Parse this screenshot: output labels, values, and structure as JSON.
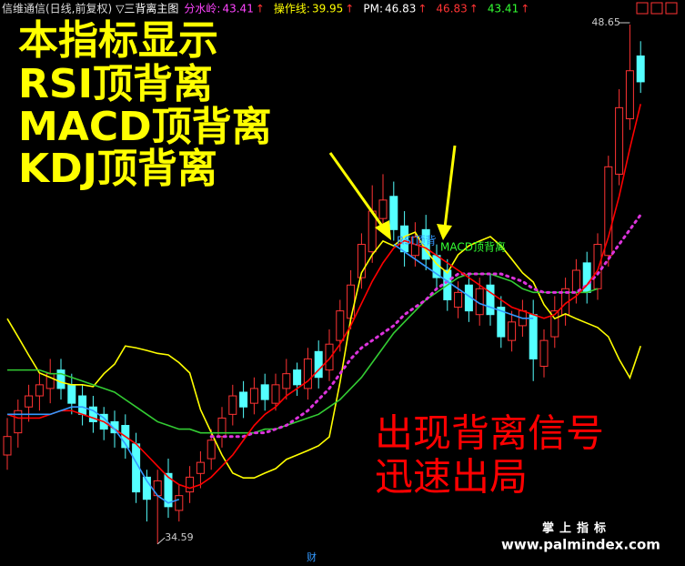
{
  "header": {
    "title": "信维通信(日线,前复权)",
    "indicator": "▽三背离主图",
    "arrow": "↑",
    "readouts": [
      {
        "label": "分水岭:",
        "value": 43.41,
        "color": "#ff44ff"
      },
      {
        "label": "操作线:",
        "value": 39.95,
        "color": "#ffff00"
      },
      {
        "label": "PM:",
        "value": 46.83,
        "color": "#ffffff"
      },
      {
        "value": 46.83,
        "color": "#ff3333"
      },
      {
        "value": 43.41,
        "color": "#33ff33"
      }
    ]
  },
  "chart_data": {
    "type": "candlestick",
    "ylim": [
      34.34,
      48.97
    ],
    "up_color": "#ff3333",
    "down_color": "#54ffff",
    "open": [
      37.0,
      37.6,
      38.3,
      38.6,
      38.8,
      39.3,
      38.9,
      38.6,
      38.3,
      38.1,
      37.9,
      37.8,
      37.3,
      36.4,
      35.9,
      36.5,
      35.5,
      36.0,
      36.5,
      36.9,
      37.5,
      38.1,
      38.7,
      38.4,
      38.9,
      38.4,
      38.8,
      39.3,
      38.8,
      39.8,
      39.3,
      40.1,
      40.7,
      41.8,
      42.5,
      43.4,
      44.0,
      43.2,
      42.4,
      43.1,
      42.4,
      42.0,
      41.0,
      41.6,
      40.8,
      41.6,
      41.0,
      40.1,
      40.5,
      40.8,
      39.4,
      40.2,
      40.8,
      41.4,
      42.2,
      41.5,
      42.4,
      44.6,
      46.1,
      47.8
    ],
    "high": [
      38.0,
      38.5,
      38.9,
      39.2,
      39.6,
      39.6,
      39.2,
      38.9,
      38.6,
      38.3,
      38.2,
      38.1,
      37.6,
      36.6,
      36.6,
      36.9,
      36.2,
      36.7,
      37.1,
      37.7,
      38.3,
      38.9,
      39.0,
      39.1,
      39.2,
      39.2,
      39.6,
      39.5,
      39.9,
      40.1,
      40.4,
      41.2,
      42.0,
      43.0,
      44.3,
      44.6,
      44.4,
      43.6,
      43.3,
      43.5,
      42.7,
      42.3,
      41.7,
      41.9,
      41.8,
      41.9,
      41.3,
      40.9,
      41.2,
      41.2,
      40.4,
      41.3,
      41.8,
      42.3,
      42.5,
      43.0,
      45.1,
      46.9,
      48.65,
      48.2
    ],
    "low": [
      36.6,
      37.2,
      37.9,
      38.2,
      38.4,
      38.5,
      38.1,
      37.8,
      37.6,
      37.4,
      37.2,
      36.9,
      35.7,
      35.2,
      34.59,
      35.3,
      35.2,
      35.7,
      36.1,
      36.6,
      37.2,
      37.8,
      38.0,
      38.1,
      38.2,
      38.2,
      38.5,
      38.6,
      38.5,
      38.8,
      39.0,
      39.8,
      40.4,
      41.5,
      42.2,
      43.1,
      42.8,
      42.1,
      42.1,
      42.0,
      41.5,
      40.9,
      40.7,
      40.6,
      40.5,
      40.5,
      39.9,
      39.8,
      40.2,
      39.0,
      39.1,
      39.9,
      40.5,
      41.1,
      41.1,
      41.2,
      42.1,
      44.3,
      45.8,
      46.8
    ],
    "close": [
      37.5,
      38.2,
      38.6,
      38.9,
      39.2,
      38.8,
      38.4,
      38.1,
      37.9,
      37.7,
      37.6,
      37.2,
      36.0,
      35.8,
      36.3,
      35.6,
      35.9,
      36.4,
      36.8,
      37.4,
      38.0,
      38.6,
      38.3,
      38.8,
      38.5,
      38.9,
      39.2,
      38.9,
      39.6,
      39.1,
      40.0,
      40.9,
      41.6,
      42.7,
      43.6,
      43.9,
      43.1,
      42.5,
      42.9,
      42.3,
      41.8,
      41.2,
      41.4,
      40.9,
      41.5,
      40.8,
      40.2,
      40.6,
      40.9,
      39.6,
      40.1,
      40.9,
      41.5,
      42.0,
      41.4,
      42.7,
      44.8,
      46.4,
      47.4,
      47.1
    ],
    "series": [
      {
        "color": "#ffff00",
        "values": [
          40.69,
          40.2,
          39.7,
          39.22,
          39.1,
          38.97,
          38.9,
          38.9,
          38.85,
          39.2,
          39.46,
          39.95,
          39.9,
          39.83,
          39.75,
          39.71,
          39.5,
          39.22,
          38.23,
          37.61,
          37.0,
          36.51,
          36.38,
          36.38,
          36.51,
          36.63,
          36.88,
          37.0,
          37.12,
          37.25,
          37.49,
          38.97,
          40.69,
          41.93,
          42.42,
          42.79,
          42.66,
          42.91,
          43.03,
          42.54,
          42.17,
          41.93,
          42.42,
          42.66,
          42.79,
          42.91,
          42.66,
          42.3,
          41.93,
          41.68,
          41.07,
          40.69,
          40.82,
          40.69,
          40.57,
          40.45,
          40.2,
          39.59,
          39.09,
          39.95
        ]
      },
      {
        "color": "#33cc33",
        "values": [
          39.3,
          39.3,
          39.3,
          39.3,
          39.2,
          39.2,
          39.1,
          39.0,
          38.9,
          38.8,
          38.7,
          38.5,
          38.3,
          38.1,
          37.9,
          37.8,
          37.7,
          37.7,
          37.6,
          37.6,
          37.6,
          37.6,
          37.6,
          37.6,
          37.7,
          37.7,
          37.8,
          37.9,
          38.0,
          38.1,
          38.3,
          38.5,
          38.8,
          39.1,
          39.5,
          39.9,
          40.3,
          40.6,
          40.9,
          41.2,
          41.4,
          41.6,
          41.8,
          41.9,
          41.9,
          41.9,
          41.8,
          41.7,
          41.5,
          41.4,
          41.4,
          41.4,
          41.4,
          41.4,
          41.4,
          41.5,
          null,
          null,
          null,
          null
        ]
      },
      {
        "color": "#dd33dd",
        "values": [
          null,
          null,
          null,
          null,
          null,
          null,
          null,
          null,
          null,
          null,
          null,
          null,
          null,
          null,
          null,
          null,
          null,
          null,
          null,
          37.5,
          37.5,
          37.5,
          37.5,
          37.6,
          37.6,
          37.7,
          37.8,
          38.0,
          38.2,
          38.5,
          38.8,
          39.2,
          39.6,
          39.9,
          40.1,
          40.3,
          40.5,
          40.8,
          41.0,
          41.2,
          41.5,
          41.7,
          41.9,
          41.9,
          41.9,
          41.9,
          41.9,
          41.8,
          41.7,
          41.5,
          41.4,
          41.4,
          41.4,
          41.4,
          41.6,
          41.9,
          42.3,
          42.7,
          43.1,
          43.5
        ]
      },
      {
        "color": "#ff0000",
        "values": [
          38.1,
          38.0,
          38.0,
          38.0,
          38.1,
          38.2,
          38.2,
          38.1,
          38.0,
          37.9,
          37.7,
          37.5,
          37.3,
          37.0,
          36.7,
          36.4,
          36.2,
          36.1,
          36.2,
          36.4,
          36.7,
          37.0,
          37.4,
          37.8,
          38.1,
          38.3,
          38.6,
          38.8,
          39.0,
          39.3,
          39.6,
          40.0,
          40.5,
          41.1,
          41.7,
          42.2,
          42.6,
          42.8,
          42.7,
          42.6,
          42.4,
          42.2,
          42.0,
          41.8,
          41.6,
          41.4,
          41.2,
          41.0,
          40.9,
          40.8,
          40.7,
          40.8,
          41.1,
          41.3,
          41.6,
          42.0,
          42.9,
          44.0,
          45.3,
          46.5
        ]
      },
      {
        "color": "#3399ff",
        "values": [
          38.1,
          38.1,
          38.1,
          38.1,
          38.1,
          38.2,
          38.3,
          38.3,
          38.2,
          38.0,
          37.7,
          37.3,
          36.8,
          36.3,
          35.9,
          35.7,
          35.8,
          null,
          null,
          null,
          null,
          null,
          null,
          null,
          null,
          null,
          null,
          null,
          null,
          null,
          null,
          null,
          null,
          null,
          null,
          null,
          42.7,
          42.5,
          42.3,
          42.1,
          41.9,
          41.7,
          41.5,
          41.3,
          41.1,
          41.0,
          40.9,
          40.8,
          40.7,
          40.7,
          null,
          null,
          null,
          null,
          null,
          null,
          null,
          null,
          null,
          null
        ]
      }
    ]
  },
  "annotations": {
    "headline": [
      "本指标显示",
      "RSI顶背离",
      "MACD顶背离",
      "KDJ顶背离"
    ],
    "signal": [
      "出现背离信号",
      "迅速出局"
    ],
    "rsi": "RSI顶背",
    "macd": "MACD顶背离",
    "brand": "掌上指标",
    "site": "www.palmindex.com",
    "tab": "财"
  }
}
